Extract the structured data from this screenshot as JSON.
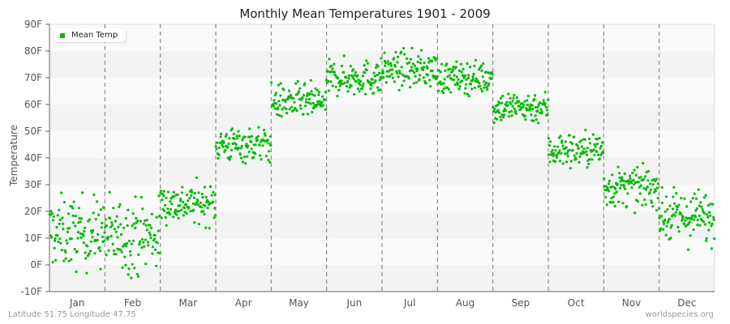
{
  "chart_data": {
    "type": "scatter",
    "title": "Monthly Mean Temperatures 1901 - 2009",
    "xlabel": "",
    "ylabel": "Temperature",
    "ylim": [
      -10,
      90
    ],
    "yticks": [
      "90F",
      "80F",
      "70F",
      "60F",
      "50F",
      "40F",
      "30F",
      "20F",
      "10F",
      "0F",
      "-10F"
    ],
    "categories": [
      "Jan",
      "Feb",
      "Mar",
      "Apr",
      "May",
      "Jun",
      "Jul",
      "Aug",
      "Sep",
      "Oct",
      "Nov",
      "Dec"
    ],
    "legend": [
      "Mean Temp"
    ],
    "legend_position": "top-left",
    "grid": "alternating horizontal bands, dashed vertical month separators",
    "series": [
      {
        "name": "Mean Temp",
        "color": "#00bb00",
        "points_per_month": 109,
        "monthly_center": [
          12,
          11,
          23,
          45,
          61,
          70,
          73,
          70,
          59,
          43,
          29,
          18
        ],
        "monthly_range": [
          [
            -4,
            32
          ],
          [
            -10,
            28
          ],
          [
            13,
            33
          ],
          [
            36,
            54
          ],
          [
            54,
            72
          ],
          [
            62,
            80
          ],
          [
            64,
            82
          ],
          [
            63,
            79
          ],
          [
            50,
            66
          ],
          [
            33,
            51
          ],
          [
            18,
            38
          ],
          [
            2,
            29
          ]
        ]
      }
    ]
  },
  "footer": {
    "location": "Latitude 51.75 Longitude 47.75",
    "source": "worldspecies.org"
  }
}
